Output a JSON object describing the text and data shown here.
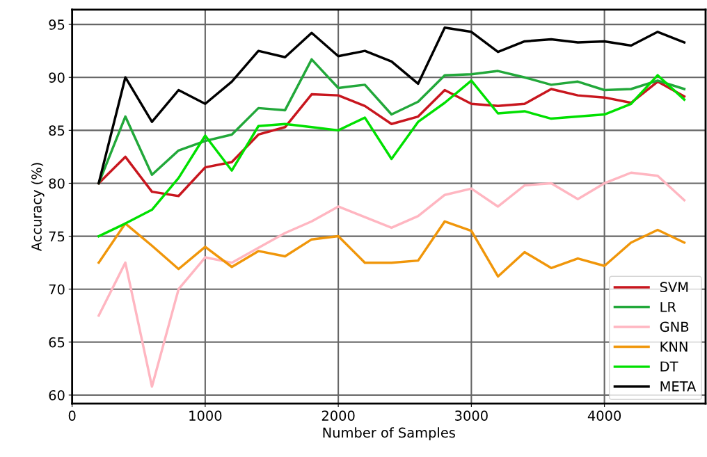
{
  "chart_data": {
    "type": "line",
    "xlabel": "Number of Samples",
    "ylabel": "Accuracy (%)",
    "x": [
      200,
      400,
      600,
      800,
      1000,
      1200,
      1400,
      1600,
      1800,
      2000,
      2200,
      2400,
      2600,
      2800,
      3000,
      3200,
      3400,
      3600,
      3800,
      4000,
      4200,
      4400,
      4600
    ],
    "series": [
      {
        "name": "SVM",
        "color": "#c8161e",
        "values": [
          80,
          82.5,
          79.2,
          78.8,
          81.5,
          82.0,
          84.6,
          85.3,
          88.4,
          88.3,
          87.3,
          85.6,
          86.3,
          88.8,
          87.5,
          87.3,
          87.5,
          88.9,
          88.3,
          88.1,
          87.6,
          89.6,
          88.2
        ]
      },
      {
        "name": "LR",
        "color": "#22a83a",
        "values": [
          80,
          86.3,
          80.8,
          83.1,
          84.0,
          84.6,
          87.1,
          86.9,
          91.7,
          89.0,
          89.3,
          86.5,
          87.7,
          90.2,
          90.3,
          90.6,
          90.0,
          89.3,
          89.6,
          88.8,
          88.9,
          89.7,
          88.9
        ]
      },
      {
        "name": "GNB",
        "color": "#ffb6c1",
        "values": [
          67.5,
          72.5,
          60.8,
          70.0,
          73.0,
          72.5,
          73.9,
          75.3,
          76.4,
          77.8,
          76.8,
          75.8,
          76.9,
          78.9,
          79.5,
          77.8,
          79.8,
          80.0,
          78.5,
          80.0,
          81.0,
          80.7,
          78.4
        ]
      },
      {
        "name": "KNN",
        "color": "#f0960a",
        "values": [
          72.5,
          76.2,
          74.1,
          71.9,
          74.0,
          72.1,
          73.6,
          73.1,
          74.7,
          75.0,
          72.5,
          72.5,
          72.7,
          76.4,
          75.5,
          71.2,
          73.5,
          72.0,
          72.9,
          72.2,
          74.4,
          75.6,
          74.4
        ]
      },
      {
        "name": "DT",
        "color": "#00e000",
        "values": [
          75,
          76.2,
          77.5,
          80.5,
          84.5,
          81.2,
          85.4,
          85.6,
          85.3,
          85.0,
          86.2,
          82.3,
          85.8,
          87.6,
          89.7,
          86.6,
          86.8,
          86.1,
          86.3,
          86.5,
          87.5,
          90.2,
          87.9
        ]
      },
      {
        "name": "META",
        "color": "#000000",
        "values": [
          80,
          90,
          85.8,
          88.8,
          87.5,
          89.6,
          92.5,
          91.9,
          94.2,
          92.0,
          92.5,
          91.5,
          89.4,
          94.7,
          94.3,
          92.4,
          93.4,
          93.6,
          93.3,
          93.4,
          93.0,
          94.3,
          93.3
        ]
      }
    ],
    "xlim": [
      0,
      4760
    ],
    "ylim": [
      59.2,
      96.4
    ],
    "xticks": [
      0,
      1000,
      2000,
      3000,
      4000
    ],
    "yticks": [
      60,
      65,
      70,
      75,
      80,
      85,
      90,
      95
    ],
    "grid": true,
    "legend": "bottom right",
    "marker": "none",
    "line_style": "solid"
  }
}
